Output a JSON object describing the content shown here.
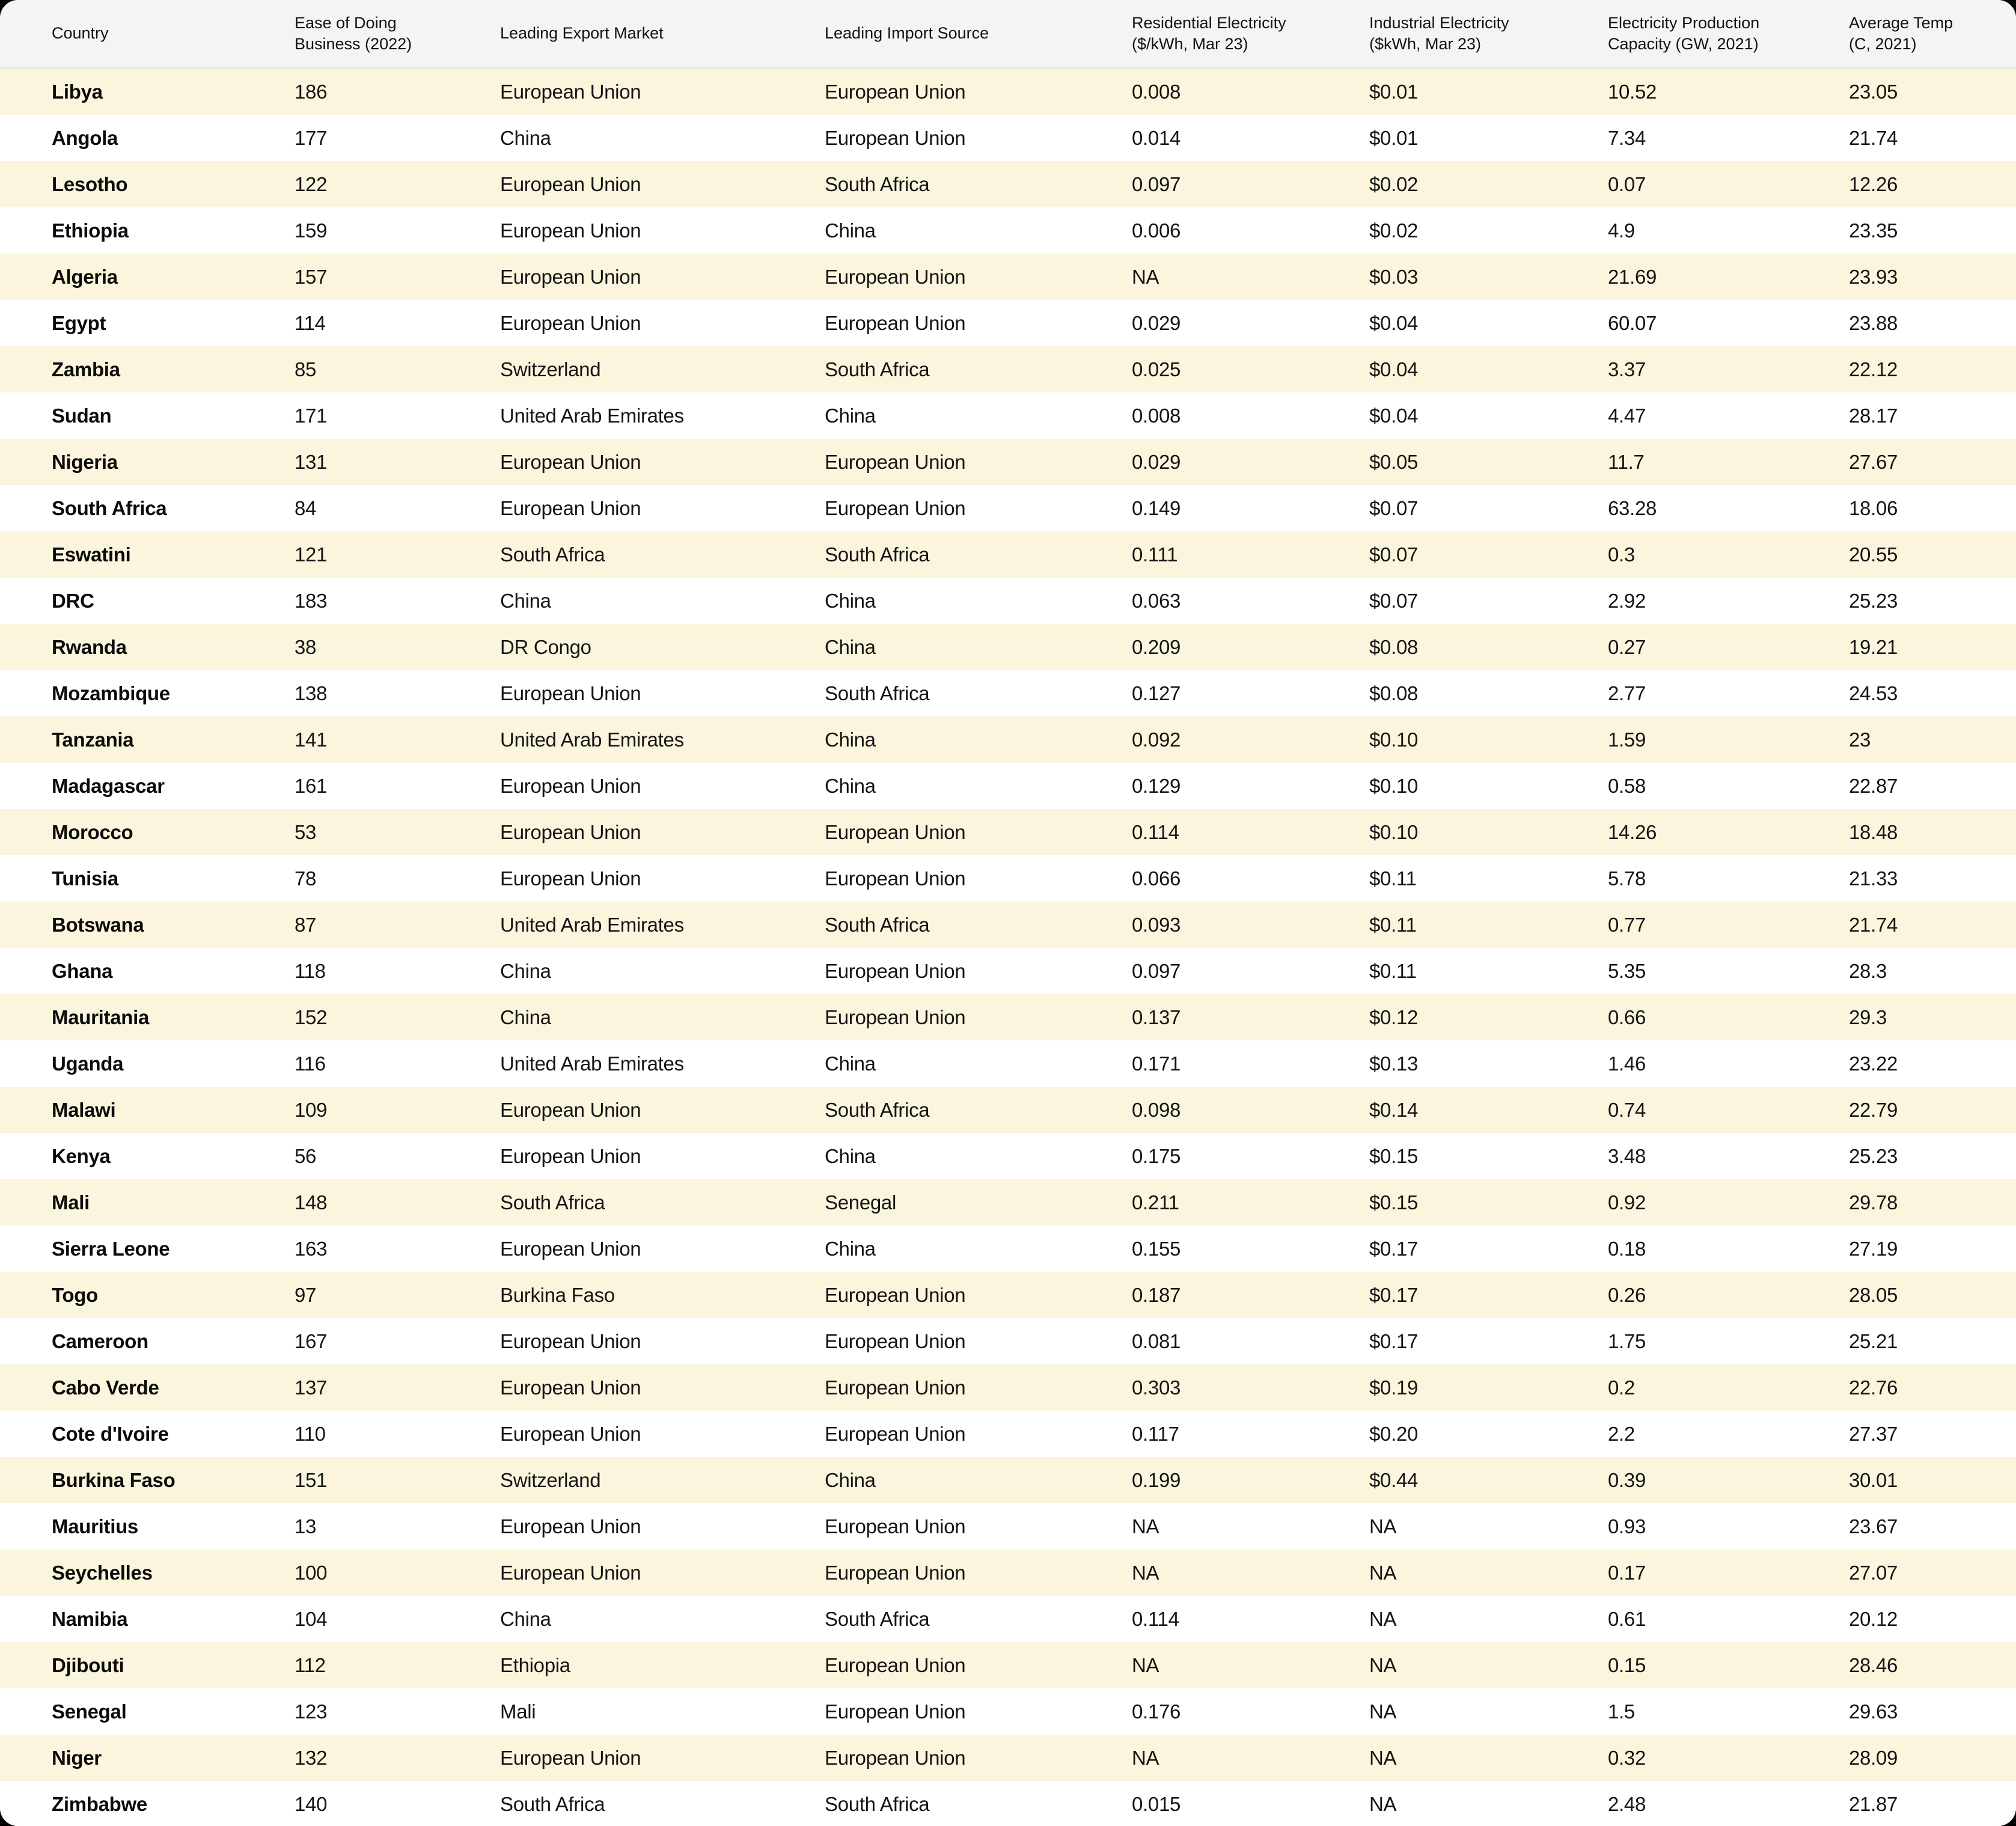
{
  "colors": {
    "page_background": "#000000",
    "card_background": "#ffffff",
    "header_background": "#f4f4f5",
    "row_stripe": "#fbf5dd",
    "header_divider": "#e2e2e2",
    "text": "#141414"
  },
  "chart_data": {
    "type": "table",
    "title": "",
    "columns": [
      {
        "key": "country",
        "label": "Country"
      },
      {
        "key": "ease-of-doing-business",
        "label": "Ease of Doing\nBusiness (2022)"
      },
      {
        "key": "leading-export-market",
        "label": "Leading Export Market"
      },
      {
        "key": "leading-import-source",
        "label": "Leading Import Source"
      },
      {
        "key": "residential-electricity",
        "label": "Residential Electricity\n($/kWh, Mar 23)"
      },
      {
        "key": "industrial-electricity",
        "label": "Industrial Electricity\n($kWh, Mar 23)"
      },
      {
        "key": "electricity-production-capacity",
        "label": "Electricity Production\nCapacity (GW, 2021)"
      },
      {
        "key": "average-temp",
        "label": "Average Temp\n(C, 2021)"
      }
    ],
    "rows": [
      [
        "Libya",
        "186",
        "European Union",
        "European Union",
        "0.008",
        "$0.01",
        "10.52",
        "23.05"
      ],
      [
        "Angola",
        "177",
        "China",
        "European Union",
        "0.014",
        "$0.01",
        "7.34",
        "21.74"
      ],
      [
        "Lesotho",
        "122",
        "European Union",
        "South Africa",
        "0.097",
        "$0.02",
        "0.07",
        "12.26"
      ],
      [
        "Ethiopia",
        "159",
        "European Union",
        "China",
        "0.006",
        "$0.02",
        "4.9",
        "23.35"
      ],
      [
        "Algeria",
        "157",
        "European Union",
        "European Union",
        "NA",
        "$0.03",
        "21.69",
        "23.93"
      ],
      [
        "Egypt",
        "114",
        "European Union",
        "European Union",
        "0.029",
        "$0.04",
        "60.07",
        "23.88"
      ],
      [
        "Zambia",
        "85",
        "Switzerland",
        "South Africa",
        "0.025",
        "$0.04",
        "3.37",
        "22.12"
      ],
      [
        "Sudan",
        "171",
        "United Arab Emirates",
        "China",
        "0.008",
        "$0.04",
        "4.47",
        "28.17"
      ],
      [
        "Nigeria",
        "131",
        "European Union",
        "European Union",
        "0.029",
        "$0.05",
        "11.7",
        "27.67"
      ],
      [
        "South Africa",
        "84",
        "European Union",
        "European Union",
        "0.149",
        "$0.07",
        "63.28",
        "18.06"
      ],
      [
        "Eswatini",
        "121",
        "South Africa",
        "South Africa",
        "0.111",
        "$0.07",
        "0.3",
        "20.55"
      ],
      [
        "DRC",
        "183",
        "China",
        "China",
        "0.063",
        "$0.07",
        "2.92",
        "25.23"
      ],
      [
        "Rwanda",
        "38",
        "DR Congo",
        "China",
        "0.209",
        "$0.08",
        "0.27",
        "19.21"
      ],
      [
        "Mozambique",
        "138",
        "European Union",
        "South Africa",
        "0.127",
        "$0.08",
        "2.77",
        "24.53"
      ],
      [
        "Tanzania",
        "141",
        "United Arab Emirates",
        "China",
        "0.092",
        "$0.10",
        "1.59",
        "23"
      ],
      [
        "Madagascar",
        "161",
        "European Union",
        "China",
        "0.129",
        "$0.10",
        "0.58",
        "22.87"
      ],
      [
        "Morocco",
        "53",
        "European Union",
        "European Union",
        "0.114",
        "$0.10",
        "14.26",
        "18.48"
      ],
      [
        "Tunisia",
        "78",
        "European Union",
        "European Union",
        "0.066",
        "$0.11",
        "5.78",
        "21.33"
      ],
      [
        "Botswana",
        "87",
        "United Arab Emirates",
        "South Africa",
        "0.093",
        "$0.11",
        "0.77",
        "21.74"
      ],
      [
        "Ghana",
        "118",
        "China",
        "European Union",
        "0.097",
        "$0.11",
        "5.35",
        "28.3"
      ],
      [
        "Mauritania",
        "152",
        "China",
        "European Union",
        "0.137",
        "$0.12",
        "0.66",
        "29.3"
      ],
      [
        "Uganda",
        "116",
        "United Arab Emirates",
        "China",
        "0.171",
        "$0.13",
        "1.46",
        "23.22"
      ],
      [
        "Malawi",
        "109",
        "European Union",
        "South Africa",
        "0.098",
        "$0.14",
        "0.74",
        "22.79"
      ],
      [
        "Kenya",
        "56",
        "European Union",
        "China",
        "0.175",
        "$0.15",
        "3.48",
        "25.23"
      ],
      [
        "Mali",
        "148",
        "South Africa",
        "Senegal",
        "0.211",
        "$0.15",
        "0.92",
        "29.78"
      ],
      [
        "Sierra Leone",
        "163",
        "European Union",
        "China",
        "0.155",
        "$0.17",
        "0.18",
        "27.19"
      ],
      [
        "Togo",
        "97",
        "Burkina Faso",
        "European Union",
        "0.187",
        "$0.17",
        "0.26",
        "28.05"
      ],
      [
        "Cameroon",
        "167",
        "European Union",
        "European Union",
        "0.081",
        "$0.17",
        "1.75",
        "25.21"
      ],
      [
        "Cabo Verde",
        "137",
        "European Union",
        "European Union",
        "0.303",
        "$0.19",
        "0.2",
        "22.76"
      ],
      [
        "Cote d'Ivoire",
        "110",
        "European Union",
        "European Union",
        "0.117",
        "$0.20",
        "2.2",
        "27.37"
      ],
      [
        "Burkina Faso",
        "151",
        "Switzerland",
        "China",
        "0.199",
        "$0.44",
        "0.39",
        "30.01"
      ],
      [
        "Mauritius",
        "13",
        "European Union",
        "European Union",
        "NA",
        "NA",
        "0.93",
        "23.67"
      ],
      [
        "Seychelles",
        "100",
        "European Union",
        "European Union",
        "NA",
        "NA",
        "0.17",
        "27.07"
      ],
      [
        "Namibia",
        "104",
        "China",
        "South Africa",
        "0.114",
        "NA",
        "0.61",
        "20.12"
      ],
      [
        "Djibouti",
        "112",
        "Ethiopia",
        "European Union",
        "NA",
        "NA",
        "0.15",
        "28.46"
      ],
      [
        "Senegal",
        "123",
        "Mali",
        "European Union",
        "0.176",
        "NA",
        "1.5",
        "29.63"
      ],
      [
        "Niger",
        "132",
        "European Union",
        "European Union",
        "NA",
        "NA",
        "0.32",
        "28.09"
      ],
      [
        "Zimbabwe",
        "140",
        "South Africa",
        "South Africa",
        "0.015",
        "NA",
        "2.48",
        "21.87"
      ]
    ]
  }
}
